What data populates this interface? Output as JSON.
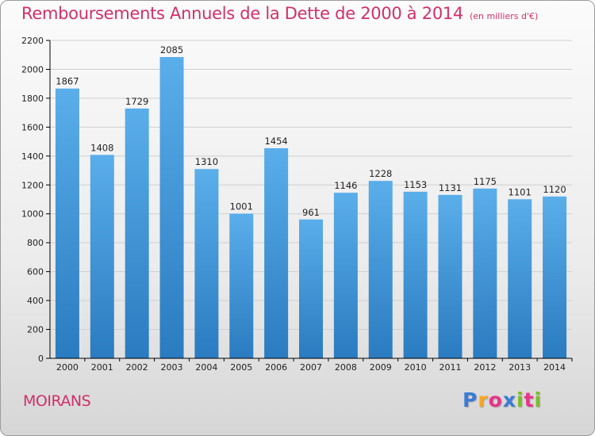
{
  "title": "Remboursements Annuels de la Dette de 2000 à 2014",
  "subtitle": "(en milliers d'€)",
  "commune": "MOIRANS",
  "logo": {
    "text": "Proxiti",
    "letter_colors": [
      "#3a7bd5",
      "#f5a623",
      "#e8348a",
      "#3a7bd5",
      "#7cbd2a",
      "#e8348a",
      "#7cbd2a"
    ]
  },
  "colors": {
    "title": "#d0306a",
    "bar_top": "#5aaeea",
    "bar_bottom": "#2a7bc0",
    "axis": "#000000",
    "grid": "#cfcfcf"
  },
  "chart_data": {
    "type": "bar",
    "title": "Remboursements Annuels de la Dette de 2000 à 2014",
    "xlabel": "",
    "ylabel": "",
    "categories": [
      "2000",
      "2001",
      "2002",
      "2003",
      "2004",
      "2005",
      "2006",
      "2007",
      "2008",
      "2009",
      "2010",
      "2011",
      "2012",
      "2013",
      "2014"
    ],
    "values": [
      1867,
      1408,
      1729,
      2085,
      1310,
      1001,
      1454,
      961,
      1146,
      1228,
      1153,
      1131,
      1175,
      1101,
      1120
    ],
    "ylim": [
      0,
      2200
    ],
    "yticks": [
      0,
      200,
      400,
      600,
      800,
      1000,
      1200,
      1400,
      1600,
      1800,
      2000,
      2200
    ],
    "grid": true,
    "legend": "none"
  }
}
